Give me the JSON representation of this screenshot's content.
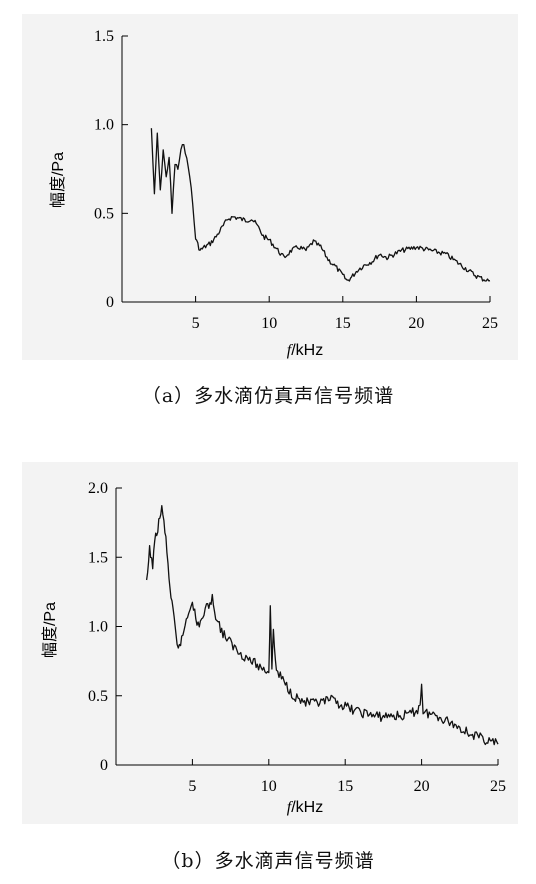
{
  "captions": {
    "a": "（a）多水滴仿真声信号频谱",
    "b": "（b）多水滴声信号频谱"
  },
  "chart_data": [
    {
      "type": "line",
      "xlabel_italic": "f",
      "xlabel_unit": "/kHz",
      "ylabel": "幅度/Pa",
      "xlim": [
        0,
        25
      ],
      "ylim": [
        0,
        1.5
      ],
      "xticks": [
        5,
        10,
        15,
        20,
        25
      ],
      "xtick_labels": [
        "5",
        "10",
        "15",
        "20",
        "25"
      ],
      "yticks": [
        0,
        0.5,
        1.0,
        1.5
      ],
      "ytick_labels": [
        "0",
        "0.5",
        "1.0",
        "1.5"
      ],
      "grid": false,
      "series": [
        {
          "x": [
            2.0,
            2.2,
            2.4,
            2.6,
            2.8,
            3.0,
            3.2,
            3.4,
            3.6,
            3.8,
            4.0,
            4.2,
            4.4,
            4.6,
            4.8,
            5.0,
            5.3,
            5.6,
            6.0,
            6.4,
            6.8,
            7.2,
            7.6,
            8.0,
            8.4,
            8.8,
            9.2,
            9.6,
            10.0,
            10.5,
            11.0,
            11.5,
            12.0,
            12.5,
            13.0,
            13.5,
            14.0,
            14.5,
            15.0,
            15.3,
            15.6,
            16.0,
            16.5,
            17.0,
            17.5,
            18.0,
            18.5,
            19.0,
            19.5,
            20.0,
            20.5,
            21.0,
            21.5,
            22.0,
            22.5,
            23.0,
            23.5,
            24.0,
            24.5,
            25.0
          ],
          "y": [
            0.98,
            0.6,
            0.95,
            0.62,
            0.86,
            0.7,
            0.82,
            0.5,
            0.78,
            0.75,
            0.85,
            0.9,
            0.8,
            0.72,
            0.55,
            0.36,
            0.29,
            0.31,
            0.33,
            0.37,
            0.42,
            0.47,
            0.48,
            0.47,
            0.46,
            0.47,
            0.43,
            0.37,
            0.35,
            0.3,
            0.25,
            0.29,
            0.31,
            0.29,
            0.34,
            0.31,
            0.24,
            0.2,
            0.15,
            0.12,
            0.14,
            0.18,
            0.21,
            0.23,
            0.27,
            0.25,
            0.27,
            0.29,
            0.3,
            0.31,
            0.3,
            0.29,
            0.28,
            0.27,
            0.24,
            0.21,
            0.18,
            0.15,
            0.13,
            0.12
          ]
        }
      ]
    },
    {
      "type": "line",
      "xlabel_italic": "f",
      "xlabel_unit": "/kHz",
      "ylabel": "幅度/Pa",
      "xlim": [
        0,
        25
      ],
      "ylim": [
        0,
        2.0
      ],
      "xticks": [
        5,
        10,
        15,
        20,
        25
      ],
      "xtick_labels": [
        "5",
        "10",
        "15",
        "20",
        "25"
      ],
      "yticks": [
        0,
        0.5,
        1.0,
        1.5,
        2.0
      ],
      "ytick_labels": [
        "0",
        "0.5",
        "1.0",
        "1.5",
        "2.0"
      ],
      "grid": false,
      "series": [
        {
          "x": [
            2.0,
            2.2,
            2.4,
            2.6,
            2.8,
            3.0,
            3.2,
            3.4,
            3.6,
            3.8,
            4.0,
            4.3,
            4.6,
            5.0,
            5.3,
            5.6,
            6.0,
            6.3,
            6.6,
            7.0,
            7.5,
            8.0,
            8.5,
            9.0,
            9.5,
            10.0,
            10.1,
            10.2,
            10.3,
            10.5,
            11.0,
            11.5,
            12.0,
            12.5,
            13.0,
            13.5,
            14.0,
            14.5,
            15.0,
            15.5,
            16.0,
            16.5,
            17.0,
            17.5,
            18.0,
            18.5,
            19.0,
            19.5,
            19.9,
            20.0,
            20.1,
            20.5,
            21.0,
            21.5,
            22.0,
            22.5,
            23.0,
            23.5,
            24.0,
            24.5,
            25.0
          ],
          "y": [
            1.3,
            1.55,
            1.45,
            1.65,
            1.75,
            1.85,
            1.7,
            1.45,
            1.2,
            1.05,
            0.85,
            0.9,
            1.05,
            1.2,
            1.0,
            1.05,
            1.15,
            1.2,
            1.05,
            0.95,
            0.88,
            0.82,
            0.78,
            0.74,
            0.7,
            0.68,
            1.15,
            0.72,
            0.95,
            0.68,
            0.6,
            0.52,
            0.47,
            0.45,
            0.44,
            0.45,
            0.47,
            0.45,
            0.42,
            0.4,
            0.38,
            0.37,
            0.35,
            0.35,
            0.36,
            0.35,
            0.36,
            0.38,
            0.42,
            0.6,
            0.38,
            0.37,
            0.36,
            0.33,
            0.3,
            0.27,
            0.24,
            0.21,
            0.19,
            0.17,
            0.15
          ]
        }
      ]
    }
  ]
}
